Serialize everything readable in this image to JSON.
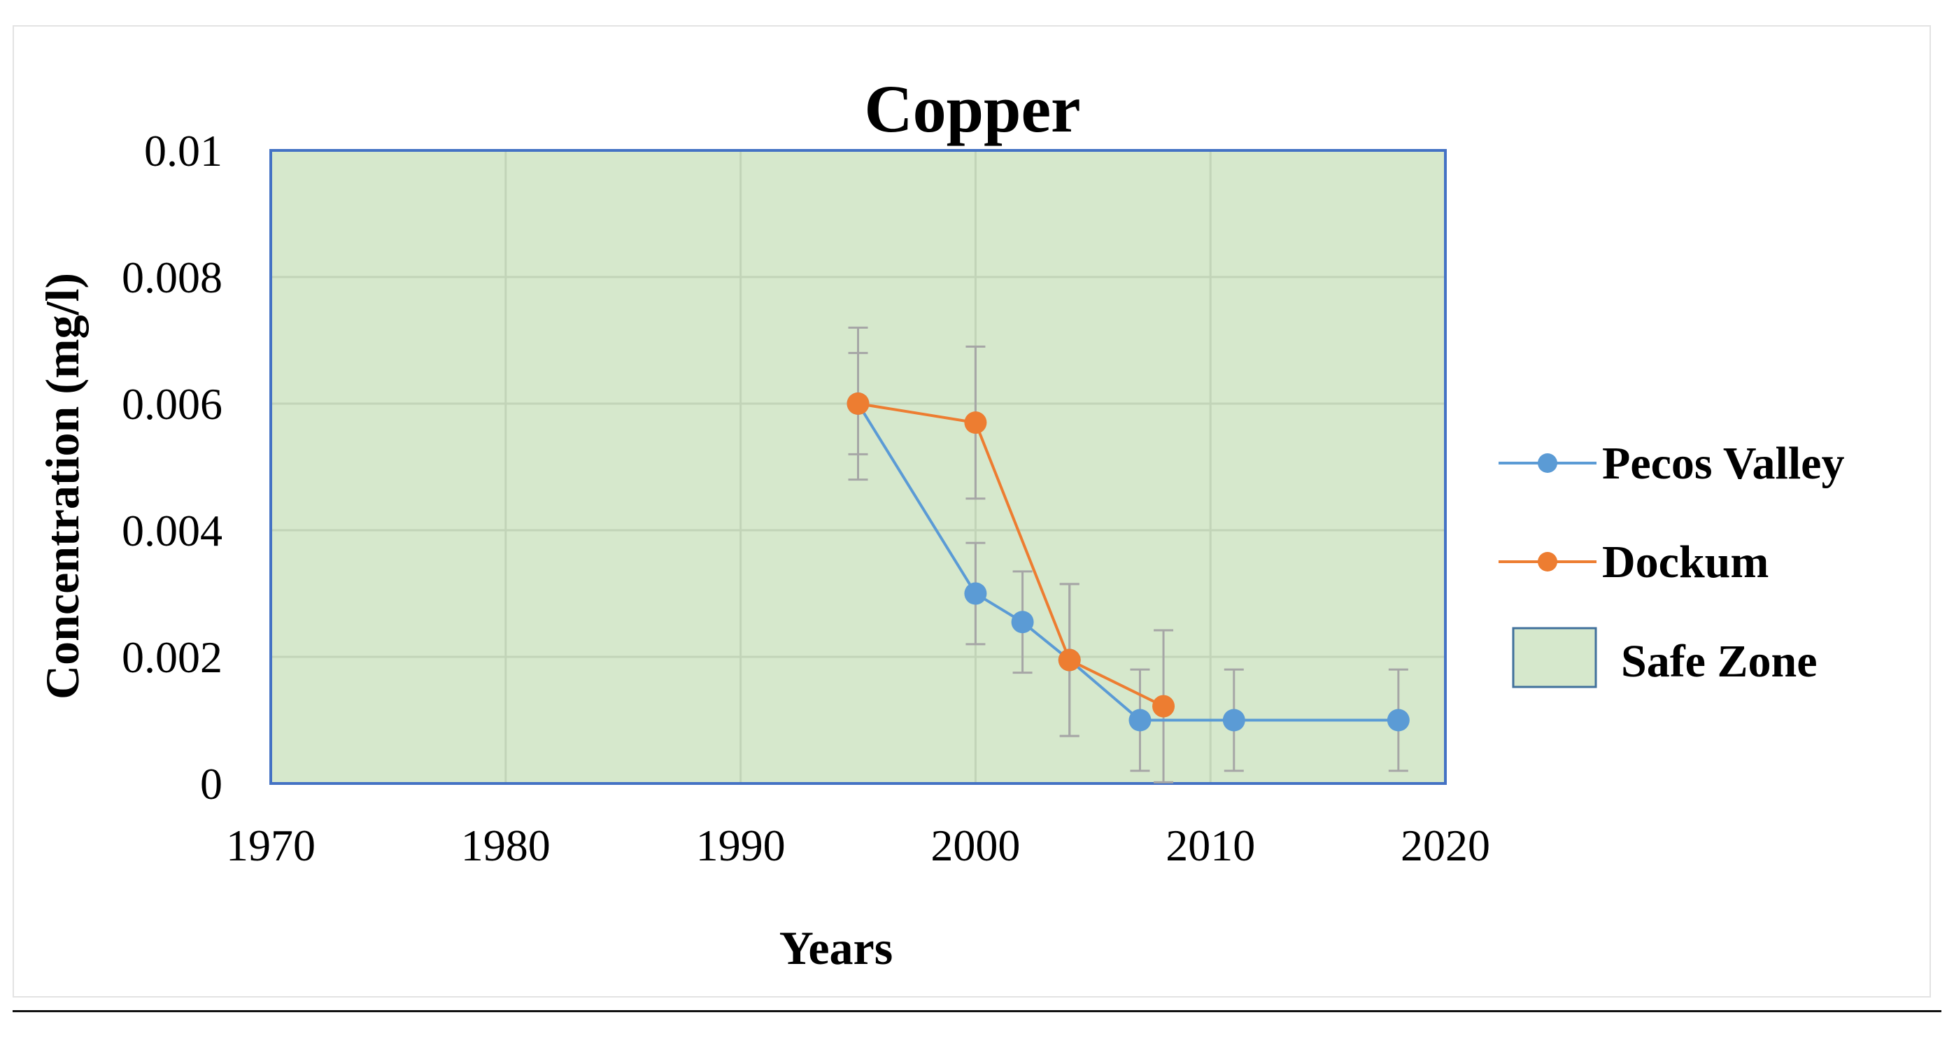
{
  "chart_data": {
    "type": "line",
    "title": "Copper",
    "xlabel": "Years",
    "ylabel": "Concentration (mg/l)",
    "xlim": [
      1970,
      2020
    ],
    "ylim": [
      0,
      0.01
    ],
    "x_ticks": [
      1970,
      1980,
      1990,
      2000,
      2010,
      2020
    ],
    "y_ticks": [
      0,
      0.002,
      0.004,
      0.006,
      0.008,
      0.01
    ],
    "y_tick_labels": [
      "0",
      "0.002",
      "0.004",
      "0.006",
      "0.008",
      "0.01"
    ],
    "grid": true,
    "legend_position": "right",
    "safe_zone": {
      "label": "Safe Zone",
      "y_range": [
        0,
        0.01
      ],
      "color": "#d6e8cc"
    },
    "series": [
      {
        "name": "Pecos Valley",
        "color": "#5b9bd5",
        "points": [
          {
            "x": 1995,
            "y": 0.006,
            "err": 0.0008
          },
          {
            "x": 2000,
            "y": 0.003,
            "err": 0.0008
          },
          {
            "x": 2002,
            "y": 0.00255,
            "err": 0.0008
          },
          {
            "x": 2004,
            "y": 0.00195,
            "err": 0.0012
          },
          {
            "x": 2007,
            "y": 0.001,
            "err": 0.0008
          },
          {
            "x": 2011,
            "y": 0.001,
            "err": 0.0008
          },
          {
            "x": 2018,
            "y": 0.001,
            "err": 0.0008
          }
        ]
      },
      {
        "name": "Dockum",
        "color": "#ed7d31",
        "points": [
          {
            "x": 1995,
            "y": 0.006,
            "err": 0.0012
          },
          {
            "x": 2000,
            "y": 0.0057,
            "err": 0.0012
          },
          {
            "x": 2004,
            "y": 0.00195,
            "err": 0.0012
          },
          {
            "x": 2008,
            "y": 0.00122,
            "err": 0.0012
          }
        ]
      }
    ]
  },
  "colors": {
    "error_bar": "#a6a6a6",
    "gridline": "#c2d4b8",
    "plot_border": "#4472c4",
    "safe_zone_border": "#41719c"
  }
}
